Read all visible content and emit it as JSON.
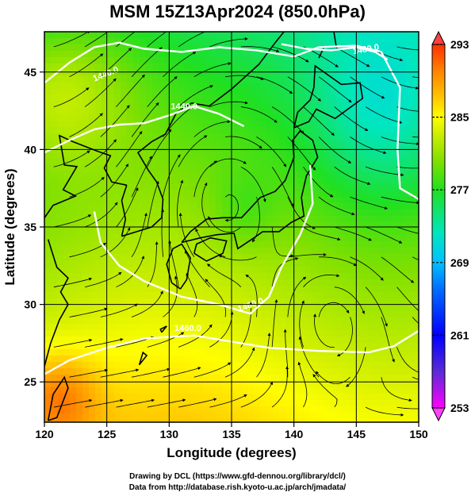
{
  "title": "MSM 15Z13Apr2024 (850.0hPa)",
  "x_axis": {
    "label": "Longitude (degrees)",
    "ticks": [
      "120",
      "125",
      "130",
      "135",
      "140",
      "145",
      "150"
    ],
    "range": [
      120,
      150
    ]
  },
  "y_axis": {
    "label": "Latitude  (degrees)",
    "ticks": [
      "25",
      "30",
      "35",
      "40",
      "45"
    ],
    "range": [
      22.4,
      47.6
    ]
  },
  "colorbar": {
    "ticks": [
      "293",
      "285",
      "277",
      "269",
      "261",
      "253"
    ],
    "range": [
      253,
      293
    ],
    "colors": [
      "#ff00ff",
      "#5b2bd6",
      "#0000ff",
      "#0066ff",
      "#00c0ff",
      "#00e6c0",
      "#20e020",
      "#80e000",
      "#d4f000",
      "#ffff00",
      "#ffc000",
      "#ff8000",
      "#ff3000"
    ]
  },
  "contour_labels": [
    "1440.0",
    "1440.0",
    "1460.0",
    "1460.0",
    "1480.0"
  ],
  "credits": {
    "line1": "Drawing by DCL (https://www.gfd-dennou.org/library/dcl/)",
    "line2": "Data from http://database.rish.kyoto-u.ac.jp/arch/jmadata/"
  }
}
